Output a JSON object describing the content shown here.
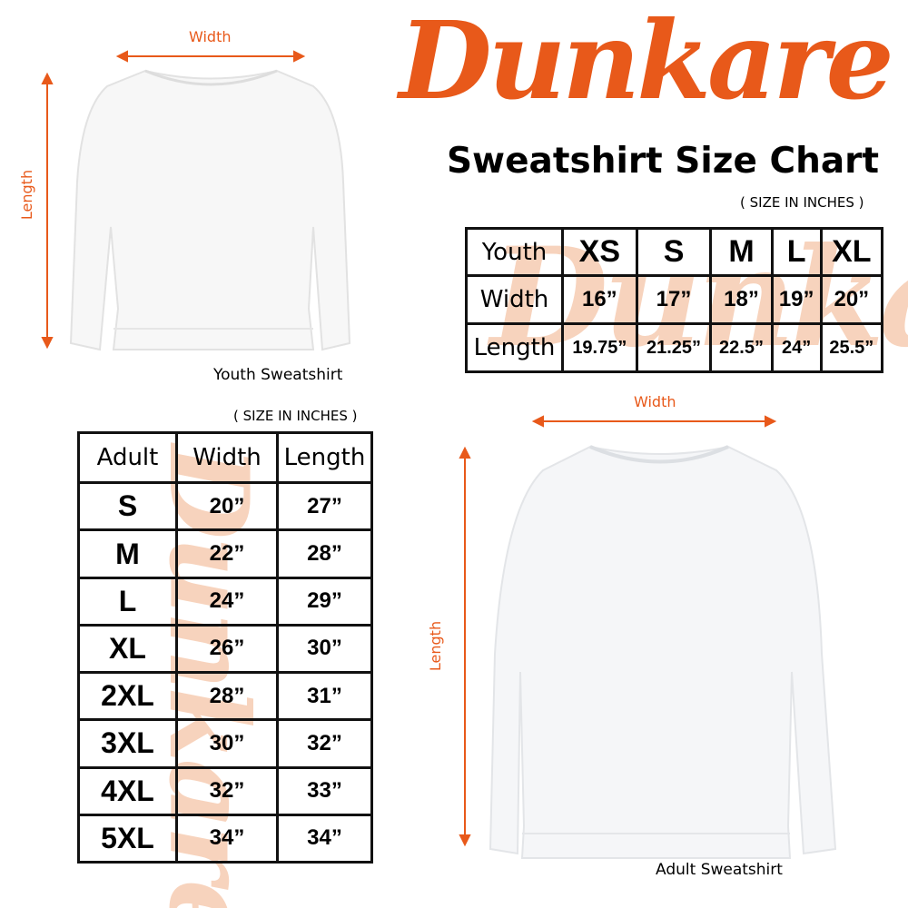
{
  "brand": {
    "logo_text": "Dunkare",
    "color": "#e8591a"
  },
  "title": "Sweatshirt Size Chart",
  "youth": {
    "caption": "Youth Sweatshirt",
    "width_label": "Width",
    "length_label": "Length",
    "note": "( SIZE IN INCHES )",
    "table": {
      "header": [
        "Youth",
        "XS",
        "S",
        "M",
        "L",
        "XL"
      ],
      "rows": [
        [
          "Width",
          "16”",
          "17”",
          "18”",
          "19”",
          "20”"
        ],
        [
          "Length",
          "19.75”",
          "21.25”",
          "22.5”",
          "24”",
          "25.5”"
        ]
      ]
    }
  },
  "adult": {
    "caption": "Adult Sweatshirt",
    "width_label": "Width",
    "length_label": "Length",
    "note": "( SIZE IN INCHES )",
    "table": {
      "header": [
        "Adult",
        "Width",
        "Length"
      ],
      "rows": [
        [
          "S",
          "20”",
          "27”"
        ],
        [
          "M",
          "22”",
          "28”"
        ],
        [
          "L",
          "24”",
          "29”"
        ],
        [
          "XL",
          "26”",
          "30”"
        ],
        [
          "2XL",
          "28”",
          "31”"
        ],
        [
          "3XL",
          "30”",
          "32”"
        ],
        [
          "4XL",
          "32”",
          "33”"
        ],
        [
          "5XL",
          "34”",
          "34”"
        ]
      ]
    }
  }
}
